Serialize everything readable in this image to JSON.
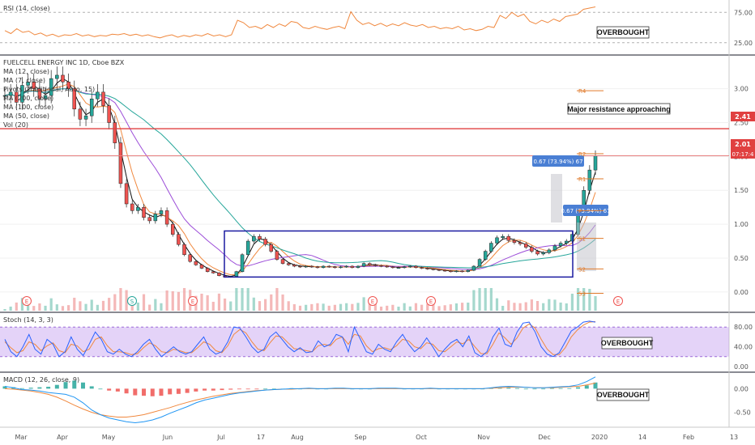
{
  "chart_data": {
    "type": "candlestick",
    "symbol_label": "FUELCELL ENERGY INC 1D, Cboe BZX",
    "indicator_legend": [
      "MA (12, close)",
      "MA (7, close)",
      "Pivots (Traditional, Auto, 15)",
      "MA (200, close)",
      "MA (100, close)",
      "MA (50, close)",
      "Vol (20)"
    ],
    "price_axis": [
      "3.00",
      "2.50",
      "2.00",
      "1.50",
      "1.00",
      "0.50",
      "0.00"
    ],
    "price_ylim": [
      -0.05,
      3.45
    ],
    "current_price_tags": [
      "2.41",
      "2.01",
      "07:17:4"
    ],
    "pivot_labels": [
      "R4",
      "R2",
      "R1",
      "P",
      "S1",
      "S2",
      "S3"
    ],
    "annotations": {
      "major_resistance": "Major resistance approaching",
      "measure_top": "0.67 (73.94%) 67",
      "measure_bottom": "0.67 (73.94%) 67",
      "overbought": "OVERBOUGHT"
    },
    "events": [
      "E",
      "S",
      "E",
      "E",
      "E",
      "E"
    ],
    "x_labels": [
      "Mar",
      "Apr",
      "May",
      "Jun",
      "Jul",
      "17",
      "Aug",
      "Sep",
      "Oct",
      "Nov",
      "Dec",
      "2020",
      "14",
      "Feb",
      "13"
    ],
    "resistance_levels": [
      2.41,
      2.01
    ],
    "consolidation_box": {
      "low": 0.22,
      "high": 0.9
    },
    "close_series": [
      2.9,
      2.95,
      2.8,
      3.05,
      3.1,
      3.0,
      2.85,
      2.9,
      3.15,
      3.2,
      3.1,
      3.0,
      2.7,
      2.55,
      2.6,
      2.85,
      2.95,
      2.75,
      2.5,
      2.2,
      1.6,
      1.3,
      1.2,
      1.25,
      1.1,
      1.05,
      1.15,
      1.2,
      1.0,
      0.85,
      0.7,
      0.55,
      0.45,
      0.4,
      0.35,
      0.3,
      0.28,
      0.24,
      0.22,
      0.23,
      0.3,
      0.55,
      0.75,
      0.82,
      0.78,
      0.7,
      0.6,
      0.48,
      0.42,
      0.4,
      0.38,
      0.37,
      0.38,
      0.37,
      0.36,
      0.38,
      0.37,
      0.36,
      0.37,
      0.38,
      0.36,
      0.38,
      0.42,
      0.4,
      0.39,
      0.38,
      0.37,
      0.36,
      0.36,
      0.37,
      0.38,
      0.36,
      0.35,
      0.34,
      0.33,
      0.32,
      0.31,
      0.3,
      0.31,
      0.3,
      0.32,
      0.38,
      0.48,
      0.6,
      0.72,
      0.8,
      0.82,
      0.76,
      0.73,
      0.71,
      0.66,
      0.6,
      0.56,
      0.58,
      0.62,
      0.68,
      0.72,
      0.75,
      0.85,
      1.2,
      1.5,
      1.8,
      2.01
    ],
    "rsi": {
      "label": "RSI (14, close)",
      "axis": [
        "75.00",
        "25.00"
      ],
      "ylim": [
        10,
        90
      ],
      "values": [
        45,
        40,
        48,
        42,
        44,
        38,
        41,
        36,
        39,
        35,
        38,
        37,
        40,
        36,
        38,
        35,
        37,
        36,
        39,
        38,
        40,
        37,
        39,
        36,
        38,
        35,
        33,
        36,
        38,
        34,
        37,
        35,
        38,
        36,
        40,
        36,
        38,
        35,
        38,
        62,
        58,
        50,
        52,
        48,
        55,
        50,
        56,
        52,
        60,
        58,
        50,
        48,
        52,
        49,
        47,
        50,
        52,
        48,
        76,
        62,
        55,
        58,
        53,
        57,
        52,
        56,
        53,
        58,
        54,
        52,
        55,
        50,
        52,
        48,
        50,
        48,
        52,
        46,
        48,
        45,
        47,
        52,
        50,
        70,
        65,
        75,
        68,
        72,
        60,
        56,
        62,
        58,
        64,
        60,
        68,
        70,
        72,
        80,
        82,
        84
      ],
      "levels": [
        75,
        25
      ]
    },
    "stoch": {
      "label": "Stoch (14, 3, 3)",
      "axis": [
        "80.00",
        "40.00",
        "0.00"
      ],
      "ylim": [
        -5,
        100
      ],
      "band": [
        20,
        80
      ],
      "k_values": [
        55,
        30,
        20,
        40,
        65,
        35,
        25,
        55,
        45,
        20,
        30,
        60,
        35,
        22,
        45,
        70,
        55,
        30,
        25,
        35,
        25,
        20,
        30,
        45,
        55,
        35,
        20,
        30,
        40,
        30,
        25,
        30,
        45,
        60,
        35,
        25,
        30,
        50,
        80,
        78,
        60,
        40,
        28,
        35,
        60,
        70,
        55,
        40,
        30,
        38,
        28,
        30,
        52,
        40,
        45,
        65,
        60,
        30,
        80,
        55,
        30,
        25,
        45,
        35,
        30,
        50,
        65,
        45,
        30,
        40,
        58,
        40,
        20,
        35,
        48,
        55,
        40,
        62,
        28,
        20,
        30,
        60,
        78,
        45,
        40,
        70,
        88,
        90,
        70,
        40,
        25,
        20,
        28,
        50,
        72,
        80,
        90,
        92,
        90
      ],
      "d_values": [
        50,
        38,
        28,
        32,
        50,
        45,
        32,
        42,
        48,
        32,
        28,
        45,
        42,
        30,
        35,
        55,
        60,
        42,
        30,
        30,
        28,
        24,
        26,
        38,
        48,
        42,
        30,
        28,
        35,
        32,
        28,
        28,
        38,
        50,
        45,
        32,
        28,
        42,
        65,
        75,
        68,
        50,
        35,
        32,
        48,
        62,
        60,
        48,
        36,
        35,
        32,
        30,
        42,
        45,
        42,
        55,
        60,
        45,
        65,
        62,
        42,
        30,
        36,
        38,
        34,
        42,
        55,
        52,
        40,
        36,
        48,
        45,
        32,
        30,
        40,
        50,
        46,
        55,
        40,
        26,
        26,
        45,
        68,
        58,
        45,
        58,
        78,
        86,
        78,
        55,
        35,
        24,
        24,
        38,
        60,
        74,
        84,
        90,
        91
      ]
    },
    "macd": {
      "label": "MACD (12, 26, close, 9)",
      "axis": [
        "0.00",
        "-0.50"
      ],
      "ylim": [
        -0.78,
        0.28
      ],
      "macd_values": [
        0.05,
        0.02,
        -0.02,
        -0.03,
        -0.05,
        -0.08,
        -0.1,
        -0.12,
        -0.18,
        -0.3,
        -0.45,
        -0.55,
        -0.62,
        -0.66,
        -0.7,
        -0.72,
        -0.7,
        -0.66,
        -0.6,
        -0.52,
        -0.45,
        -0.38,
        -0.3,
        -0.24,
        -0.2,
        -0.16,
        -0.12,
        -0.09,
        -0.07,
        -0.05,
        -0.03,
        -0.02,
        -0.01,
        0.0,
        0.0,
        0.01,
        0.0,
        0.0,
        0.01,
        0.01,
        0.0,
        0.0,
        0.0,
        0.01,
        0.01,
        0.01,
        0.0,
        0.0,
        0.0,
        0.01,
        0.0,
        0.0,
        0.0,
        0.0,
        0.0,
        0.0,
        0.02,
        0.04,
        0.05,
        0.04,
        0.03,
        0.02,
        0.02,
        0.03,
        0.04,
        0.05,
        0.08,
        0.15,
        0.25
      ],
      "signal_values": [
        0.0,
        -0.01,
        -0.03,
        -0.05,
        -0.08,
        -0.12,
        -0.18,
        -0.26,
        -0.35,
        -0.43,
        -0.5,
        -0.55,
        -0.58,
        -0.6,
        -0.6,
        -0.58,
        -0.55,
        -0.5,
        -0.45,
        -0.4,
        -0.34,
        -0.29,
        -0.24,
        -0.2,
        -0.16,
        -0.13,
        -0.1,
        -0.08,
        -0.06,
        -0.04,
        -0.03,
        -0.02,
        -0.01,
        -0.01,
        0.0,
        0.0,
        0.0,
        0.0,
        0.0,
        0.0,
        0.0,
        0.0,
        0.0,
        0.0,
        0.0,
        0.0,
        0.0,
        0.0,
        0.0,
        0.0,
        0.0,
        0.0,
        0.0,
        0.0,
        0.0,
        0.0,
        0.01,
        0.02,
        0.03,
        0.03,
        0.03,
        0.02,
        0.02,
        0.02,
        0.03,
        0.04,
        0.05,
        0.08,
        0.12
      ],
      "hist_values": [
        0.05,
        0.03,
        0.01,
        0.02,
        0.03,
        0.04,
        0.08,
        0.14,
        0.17,
        0.13,
        0.05,
        0.0,
        -0.04,
        -0.06,
        -0.1,
        -0.14,
        -0.15,
        -0.16,
        -0.15,
        -0.12,
        -0.11,
        -0.09,
        -0.06,
        -0.04,
        -0.04,
        -0.03,
        -0.02,
        -0.01,
        -0.01,
        -0.01,
        0.0,
        0.0,
        0.0,
        0.01,
        0.0,
        0.01,
        0.0,
        0.0,
        0.01,
        0.01,
        0.0,
        0.0,
        0.0,
        0.01,
        0.01,
        0.01,
        0.0,
        0.0,
        0.0,
        0.01,
        0.0,
        0.0,
        0.0,
        0.0,
        0.0,
        0.0,
        0.01,
        0.02,
        0.02,
        0.01,
        0.0,
        0.0,
        0.0,
        0.01,
        0.01,
        0.01,
        0.03,
        0.07,
        0.13
      ]
    }
  }
}
